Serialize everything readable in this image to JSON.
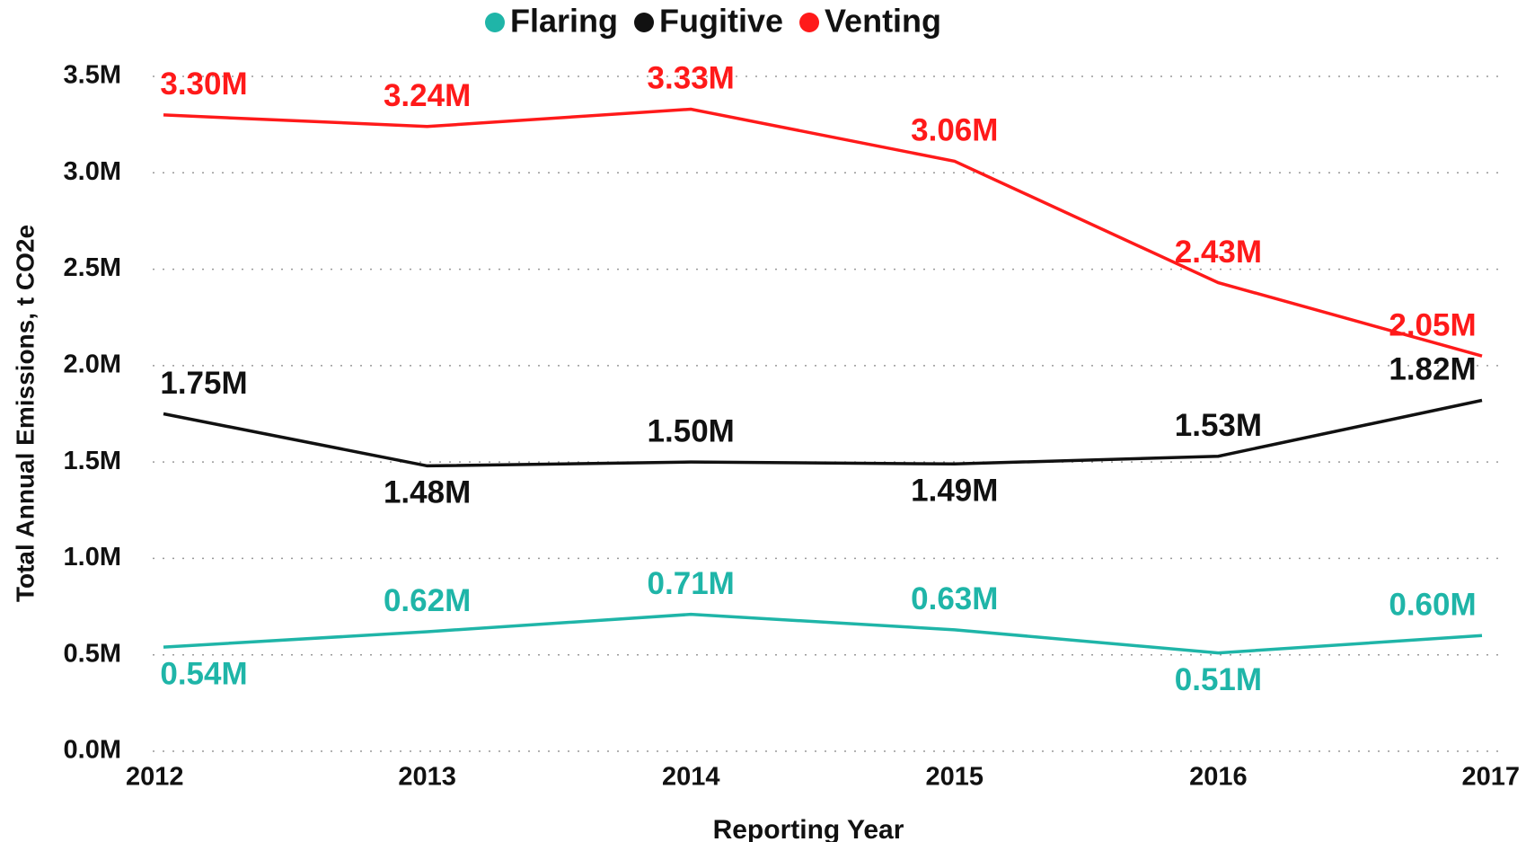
{
  "chart_data": {
    "type": "line",
    "x_label": "Reporting Year",
    "y_label": "Total Annual Emissions, t CO2e",
    "categories": [
      "2012",
      "2013",
      "2014",
      "2015",
      "2016",
      "2017"
    ],
    "series": [
      {
        "name": "Flaring",
        "color": "#1fb5a8",
        "values": [
          540000,
          620000,
          710000,
          630000,
          510000,
          600000
        ],
        "value_labels": [
          "0.54M",
          "0.62M",
          "0.71M",
          "0.63M",
          "0.51M",
          "0.60M"
        ]
      },
      {
        "name": "Fugitive",
        "color": "#111111",
        "values": [
          1750000,
          1480000,
          1500000,
          1490000,
          1530000,
          1820000
        ],
        "value_labels": [
          "1.75M",
          "1.48M",
          "1.50M",
          "1.49M",
          "1.53M",
          "1.82M"
        ]
      },
      {
        "name": "Venting",
        "color": "#ff1a1a",
        "values": [
          3300000,
          3240000,
          3330000,
          3060000,
          2430000,
          2050000
        ],
        "value_labels": [
          "3.30M",
          "3.24M",
          "3.33M",
          "3.06M",
          "2.43M",
          "2.05M"
        ]
      }
    ],
    "ylim": [
      0,
      3500000
    ],
    "yticks": [
      {
        "value": 0,
        "label": "0.0M"
      },
      {
        "value": 500000,
        "label": "0.5M"
      },
      {
        "value": 1000000,
        "label": "1.0M"
      },
      {
        "value": 1500000,
        "label": "1.5M"
      },
      {
        "value": 2000000,
        "label": "2.0M"
      },
      {
        "value": 2500000,
        "label": "2.5M"
      },
      {
        "value": 3000000,
        "label": "3.0M"
      },
      {
        "value": 3500000,
        "label": "3.5M"
      }
    ],
    "grid": true,
    "legend": "top"
  }
}
